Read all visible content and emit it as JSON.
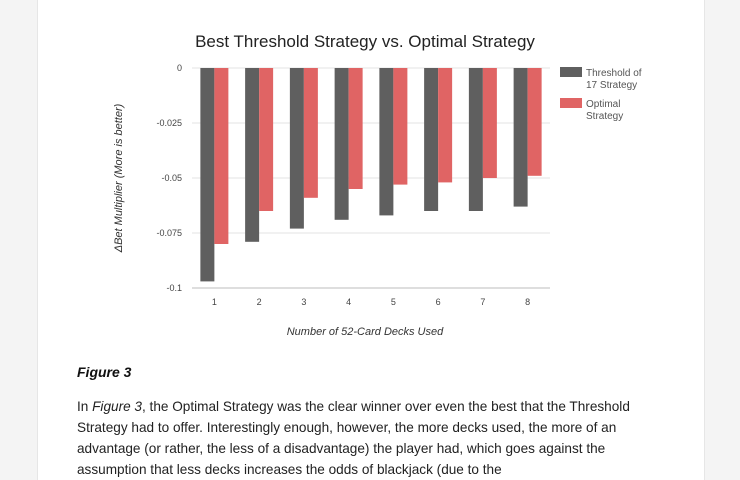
{
  "chart_data": {
    "type": "bar",
    "title": "Best Threshold Strategy vs. Optimal Strategy",
    "xlabel": "Number of 52-Card Decks Used",
    "ylabel": "ΔBet Multiplier (More is better)",
    "categories": [
      "1",
      "2",
      "3",
      "4",
      "5",
      "6",
      "7",
      "8"
    ],
    "ylim": [
      -0.1,
      0
    ],
    "yticks": [
      "0",
      "-0.025",
      "-0.05",
      "-0.075",
      "-0.1"
    ],
    "ytick_values": [
      0,
      -0.025,
      -0.05,
      -0.075,
      -0.1
    ],
    "grid": true,
    "legend_position": "right",
    "series": [
      {
        "name": "Threshold of 17 Strategy",
        "legend_lines": [
          "Threshold of",
          "17 Strategy"
        ],
        "color": "#5f5f5f",
        "values": [
          -0.097,
          -0.079,
          -0.073,
          -0.069,
          -0.067,
          -0.065,
          -0.065,
          -0.063
        ]
      },
      {
        "name": "Optimal Strategy",
        "legend_lines": [
          "Optimal",
          "Strategy"
        ],
        "color": "#e06464",
        "values": [
          -0.08,
          -0.065,
          -0.059,
          -0.055,
          -0.053,
          -0.052,
          -0.05,
          -0.049
        ]
      }
    ]
  },
  "figure": {
    "caption": "Figure 3"
  },
  "article": {
    "p_start": "In ",
    "p_ref": "Figure 3",
    "p_rest": ", the Optimal Strategy was the clear winner over even the best that the Threshold Strategy had to offer. Interestingly enough, however, the more decks used, the more of an advantage (or rather, the less of a disadvantage) the player had, which goes against the assumption that less decks increases the odds of blackjack (due to the"
  }
}
